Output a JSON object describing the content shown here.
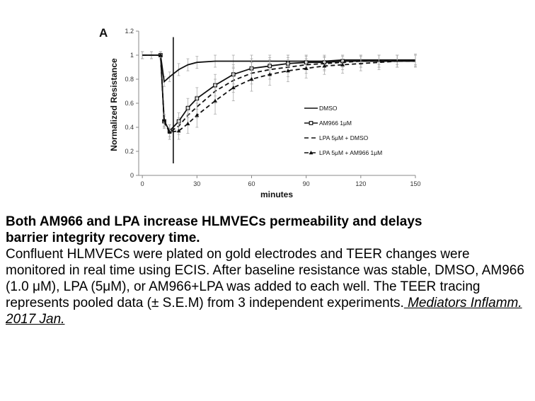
{
  "chart_data": {
    "type": "line",
    "panel_label": "A",
    "title": "",
    "xlabel": "minutes",
    "ylabel": "Normalized Resistance",
    "xlim": [
      -2,
      150
    ],
    "ylim": [
      0,
      1.2
    ],
    "xticks": [
      0,
      30,
      60,
      90,
      120,
      150
    ],
    "yticks": [
      0,
      0.2,
      0.4,
      0.6,
      0.8,
      1,
      1.2
    ],
    "ytick_labels": [
      "0",
      "0.2",
      "0.4",
      "0.6",
      "0.8",
      "1",
      "1.2"
    ],
    "treatment_marker_x": 17,
    "grid": false,
    "legend_position": "center-right",
    "series": [
      {
        "name": "DMSO",
        "style": "solid",
        "x": [
          0,
          5,
          10,
          12,
          15,
          20,
          25,
          30,
          40,
          50,
          60,
          70,
          80,
          90,
          100,
          110,
          120,
          130,
          140,
          150
        ],
        "y": [
          1.0,
          1.0,
          1.0,
          0.78,
          0.82,
          0.88,
          0.92,
          0.94,
          0.95,
          0.95,
          0.95,
          0.95,
          0.95,
          0.95,
          0.95,
          0.96,
          0.96,
          0.96,
          0.96,
          0.96
        ],
        "err": [
          0.03,
          0.03,
          0.03,
          0.04,
          0.04,
          0.05,
          0.05,
          0.05,
          0.05,
          0.05,
          0.05,
          0.05,
          0.05,
          0.05,
          0.04,
          0.04,
          0.04,
          0.04,
          0.04,
          0.04
        ]
      },
      {
        "name": "AM966 1μM",
        "style": "solid-square",
        "x": [
          0,
          5,
          10,
          12,
          15,
          20,
          25,
          30,
          40,
          50,
          60,
          70,
          80,
          90,
          100,
          110,
          120,
          130,
          140,
          150
        ],
        "y": [
          1.0,
          1.0,
          1.0,
          0.45,
          0.37,
          0.45,
          0.56,
          0.64,
          0.75,
          0.84,
          0.89,
          0.91,
          0.93,
          0.94,
          0.94,
          0.95,
          0.95,
          0.95,
          0.95,
          0.95
        ],
        "err": [
          0.03,
          0.03,
          0.03,
          0.05,
          0.05,
          0.07,
          0.08,
          0.09,
          0.09,
          0.08,
          0.08,
          0.07,
          0.07,
          0.06,
          0.06,
          0.05,
          0.05,
          0.05,
          0.05,
          0.05
        ]
      },
      {
        "name": "LPA 5μM + DMSO",
        "style": "dash",
        "x": [
          0,
          5,
          10,
          12,
          15,
          20,
          25,
          30,
          40,
          50,
          60,
          70,
          80,
          90,
          100,
          110,
          120,
          130,
          140,
          150
        ],
        "y": [
          1.0,
          1.0,
          1.0,
          0.44,
          0.36,
          0.41,
          0.5,
          0.57,
          0.7,
          0.79,
          0.85,
          0.88,
          0.9,
          0.92,
          0.93,
          0.94,
          0.95,
          0.95,
          0.95,
          0.95
        ],
        "err": [
          0.03,
          0.03,
          0.03,
          0.05,
          0.06,
          0.07,
          0.08,
          0.09,
          0.1,
          0.1,
          0.09,
          0.08,
          0.08,
          0.07,
          0.06,
          0.06,
          0.05,
          0.05,
          0.05,
          0.05
        ]
      },
      {
        "name": "LPA 5μM + AM966 1μM",
        "style": "dash-triangle",
        "x": [
          0,
          5,
          10,
          12,
          15,
          20,
          25,
          30,
          40,
          50,
          60,
          70,
          80,
          90,
          100,
          110,
          120,
          130,
          140,
          150
        ],
        "y": [
          1.0,
          1.0,
          1.0,
          0.46,
          0.36,
          0.37,
          0.43,
          0.5,
          0.62,
          0.73,
          0.8,
          0.84,
          0.87,
          0.89,
          0.91,
          0.92,
          0.93,
          0.94,
          0.95,
          0.96
        ],
        "err": [
          0.03,
          0.03,
          0.03,
          0.05,
          0.06,
          0.07,
          0.08,
          0.1,
          0.11,
          0.11,
          0.1,
          0.09,
          0.09,
          0.08,
          0.07,
          0.07,
          0.06,
          0.06,
          0.05,
          0.05
        ]
      }
    ]
  },
  "caption": {
    "title_line1": "Both AM966 and LPA increase HLMVECs permeability and delays",
    "title_line2": "barrier integrity recovery time.",
    "body": "Confluent HLMVECs were plated on gold electrodes and TEER changes were monitored in real time using ECIS. After baseline resistance was stable, DMSO, AM966 (1.0 μM), LPA (5μM), or AM966+LPA was added to each well. The TEER tracing represents pooled data (± S.E.M) from 3 independent experiments.",
    "source_link": " Mediators Inflamm. 2017 Jan."
  }
}
